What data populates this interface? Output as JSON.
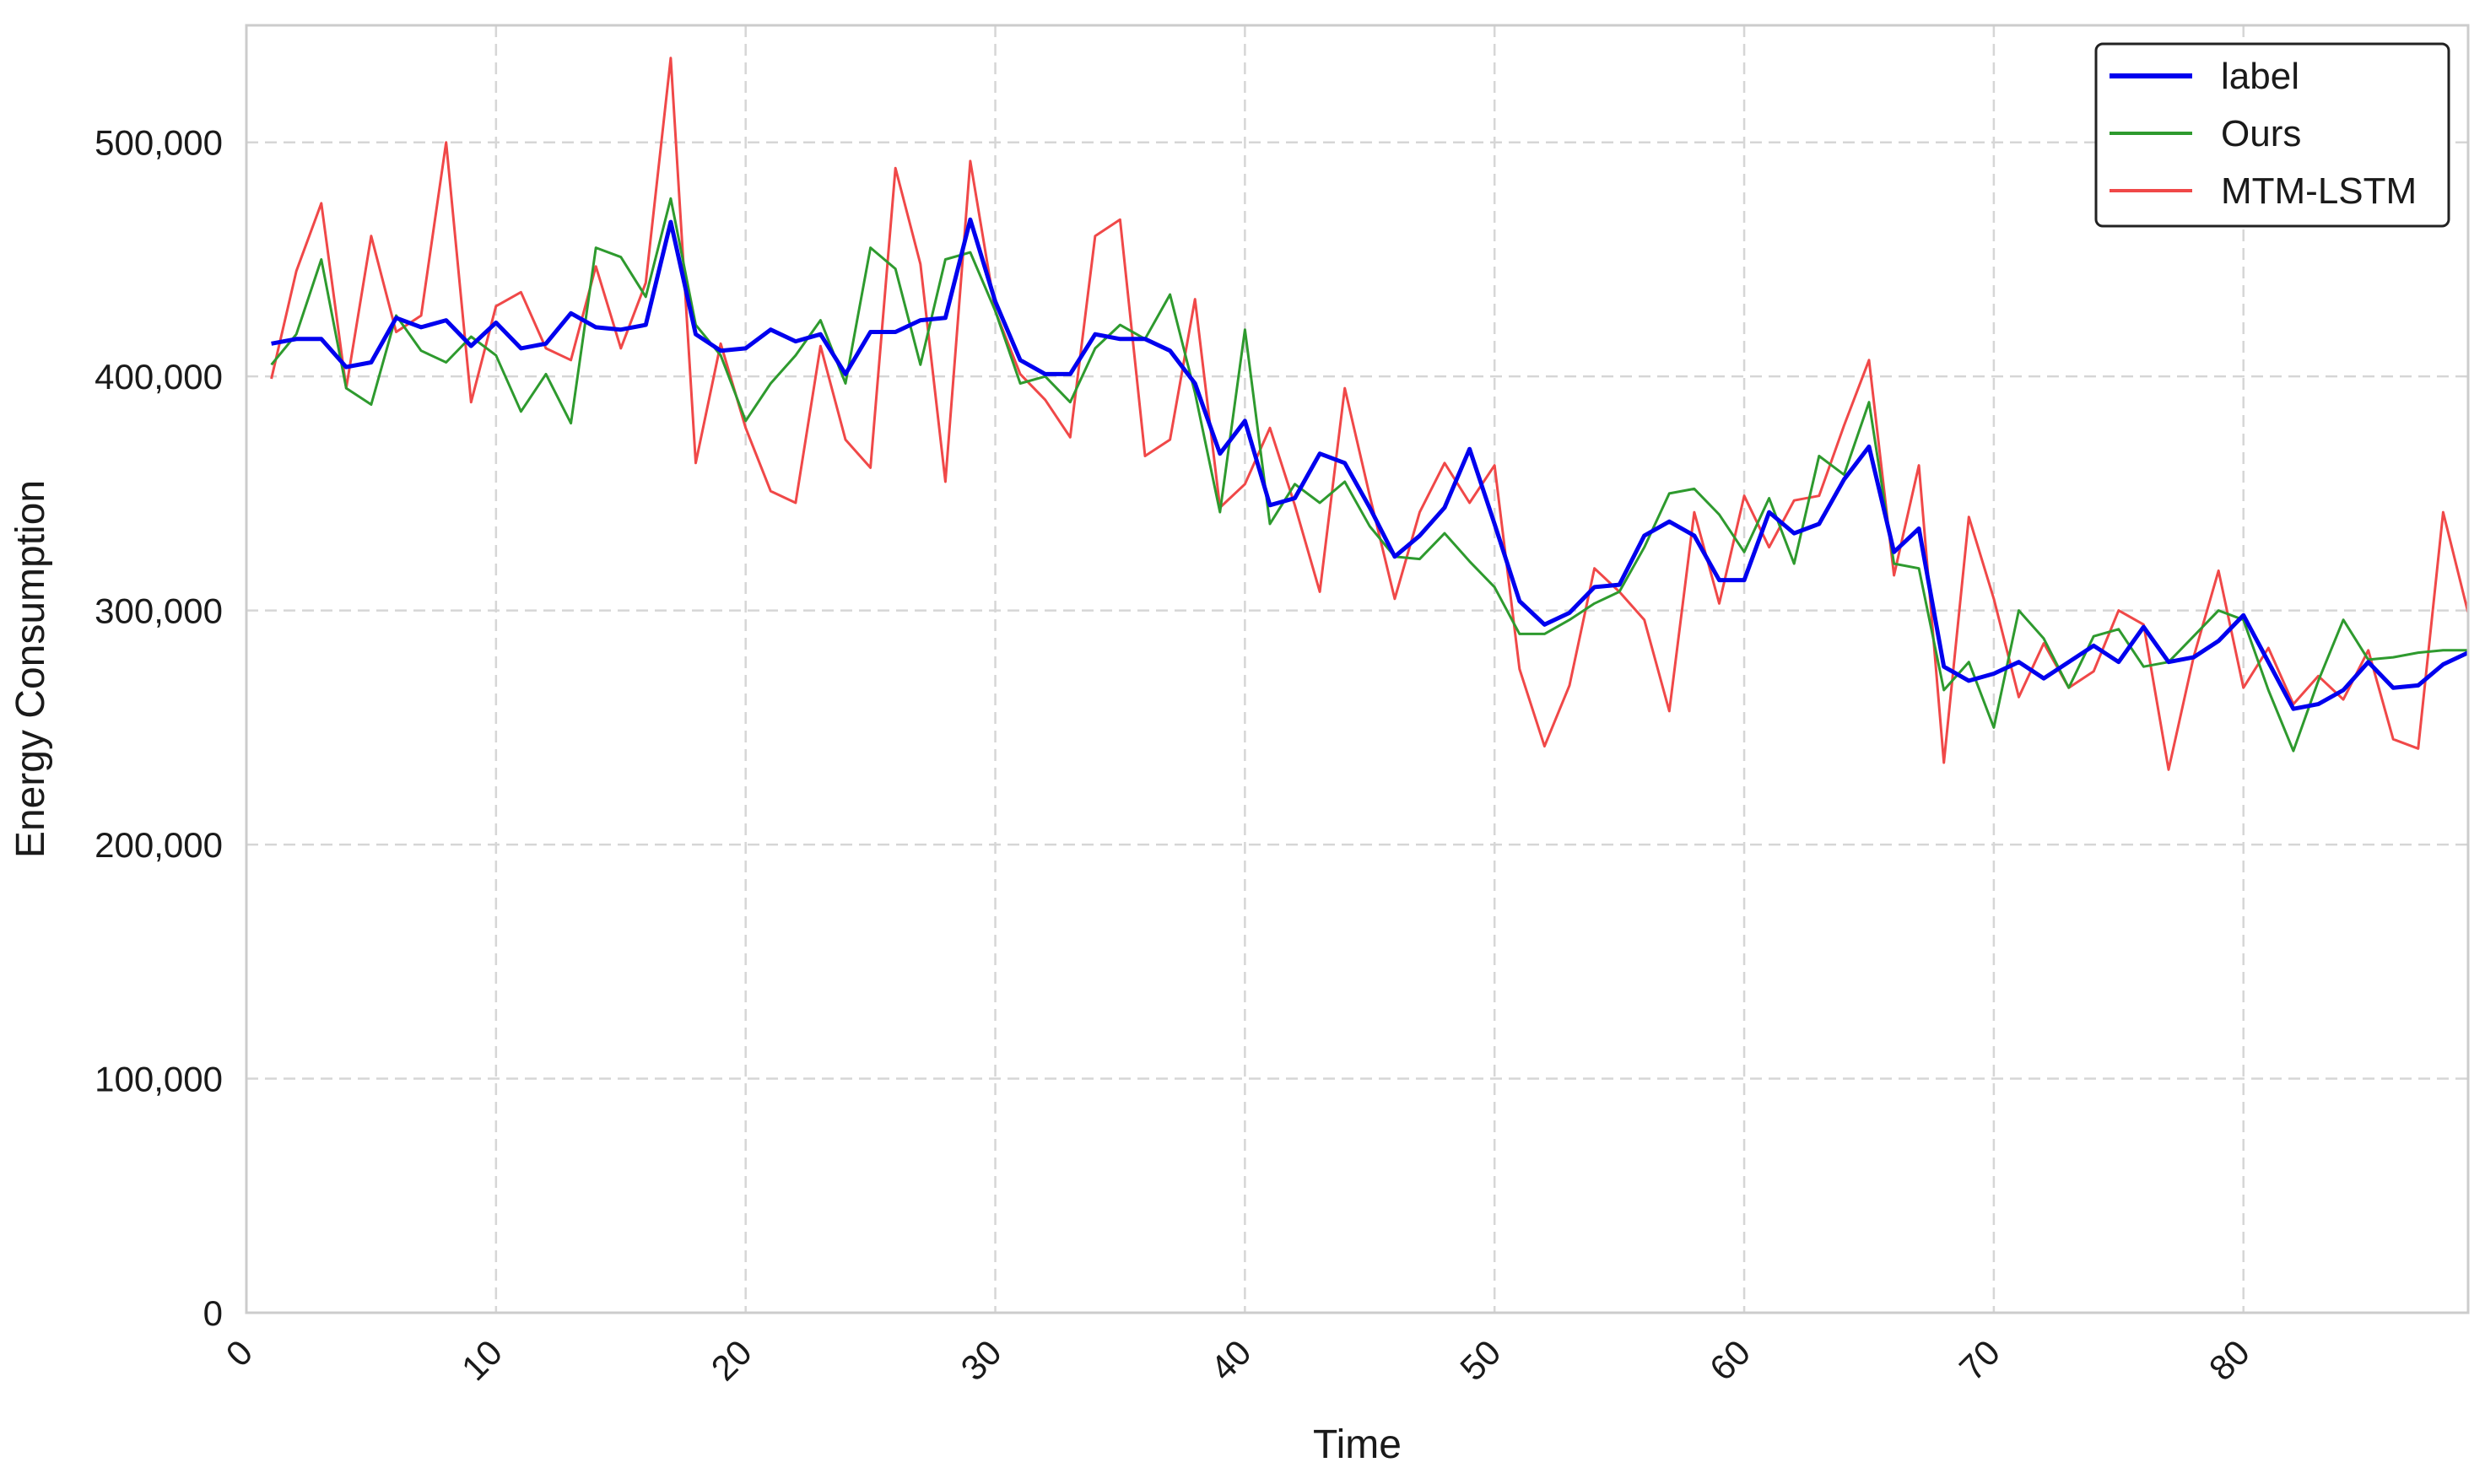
{
  "chart_data": {
    "type": "line",
    "title": "",
    "xlabel": "Time",
    "ylabel": "Energy Consumption",
    "xlim": [
      0,
      89
    ],
    "ylim": [
      0,
      550000
    ],
    "xticks": [
      0,
      10,
      20,
      30,
      40,
      50,
      60,
      70,
      80
    ],
    "xtick_labels": [
      "0",
      "10",
      "20",
      "30",
      "40",
      "50",
      "60",
      "70",
      "80"
    ],
    "yticks": [
      0,
      100000,
      200000,
      300000,
      400000,
      500000
    ],
    "ytick_labels": [
      "0",
      "100,000",
      "200,000",
      "300,000",
      "400,000",
      "500,000"
    ],
    "grid": true,
    "legend_position": "top-right",
    "x": [
      1,
      2,
      3,
      4,
      5,
      6,
      7,
      8,
      9,
      10,
      11,
      12,
      13,
      14,
      15,
      16,
      17,
      18,
      19,
      20,
      21,
      22,
      23,
      24,
      25,
      26,
      27,
      28,
      29,
      30,
      31,
      32,
      33,
      34,
      35,
      36,
      37,
      38,
      39,
      40,
      41,
      42,
      43,
      44,
      45,
      46,
      47,
      48,
      49,
      50,
      51,
      52,
      53,
      54,
      55,
      56,
      57,
      58,
      59,
      60,
      61,
      62,
      63,
      64,
      65,
      66,
      67,
      68,
      69,
      70,
      71,
      72,
      73,
      74,
      75,
      76,
      77,
      78,
      79,
      80,
      81,
      82,
      83,
      84,
      85,
      86,
      87,
      88,
      89
    ],
    "series": [
      {
        "name": "label",
        "color": "#0000ee",
        "width": 5,
        "values": [
          414000,
          416000,
          416000,
          404000,
          406000,
          425000,
          421000,
          424000,
          413000,
          423000,
          412000,
          414000,
          427000,
          421000,
          420000,
          422000,
          466000,
          418000,
          411000,
          412000,
          420000,
          415000,
          418000,
          401000,
          419000,
          419000,
          424000,
          425000,
          467000,
          432000,
          407000,
          401000,
          401000,
          418000,
          416000,
          416000,
          411000,
          397000,
          367000,
          381000,
          345000,
          348000,
          367000,
          363000,
          344000,
          323000,
          332000,
          344000,
          369000,
          337000,
          304000,
          294000,
          299000,
          310000,
          311000,
          332000,
          338000,
          332000,
          313000,
          313000,
          342000,
          333000,
          337000,
          356000,
          370000,
          325000,
          335000,
          276000,
          270000,
          273000,
          278000,
          271000,
          278000,
          285000,
          278000,
          293000,
          278000,
          280000,
          287000,
          298000,
          278000,
          258000,
          260000,
          266000,
          278000,
          267000,
          268000,
          277000,
          282000
        ]
      },
      {
        "name": "Ours",
        "color": "#2e9a2e",
        "width": 3,
        "values": [
          405000,
          418000,
          450000,
          395000,
          388000,
          426000,
          411000,
          406000,
          417000,
          409000,
          385000,
          401000,
          380000,
          455000,
          451000,
          434000,
          476000,
          422000,
          409000,
          381000,
          397000,
          409000,
          424000,
          397000,
          455000,
          446000,
          405000,
          450000,
          453000,
          428000,
          397000,
          400000,
          389000,
          412000,
          422000,
          416000,
          435000,
          393000,
          342000,
          420000,
          337000,
          354000,
          346000,
          355000,
          336000,
          323000,
          322000,
          333000,
          321000,
          310000,
          290000,
          290000,
          296000,
          303000,
          308000,
          327000,
          350000,
          352000,
          341000,
          325000,
          348000,
          320000,
          366000,
          358000,
          389000,
          320000,
          318000,
          266000,
          278000,
          250000,
          300000,
          288000,
          267000,
          289000,
          292000,
          276000,
          278000,
          289000,
          300000,
          296000,
          266000,
          240000,
          270000,
          296000,
          279000,
          280000,
          282000,
          283000,
          283000
        ]
      },
      {
        "name": "MTM-LSTM",
        "color": "#f04848",
        "width": 3,
        "values": [
          399000,
          445000,
          474000,
          395000,
          460000,
          419000,
          426000,
          500000,
          389000,
          430000,
          436000,
          412000,
          407000,
          447000,
          412000,
          440000,
          536000,
          363000,
          414000,
          378000,
          351000,
          346000,
          413000,
          373000,
          361000,
          489000,
          448000,
          355000,
          492000,
          428000,
          401000,
          390000,
          374000,
          460000,
          467000,
          366000,
          373000,
          433000,
          344000,
          354000,
          378000,
          345000,
          308000,
          395000,
          349000,
          305000,
          342000,
          363000,
          346000,
          362000,
          275000,
          242000,
          268000,
          318000,
          308000,
          296000,
          257000,
          342000,
          303000,
          349000,
          327000,
          347000,
          349000,
          379000,
          407000,
          315000,
          362000,
          235000,
          340000,
          305000,
          263000,
          286000,
          267000,
          274000,
          300000,
          294000,
          232000,
          280000,
          317000,
          267000,
          284000,
          260000,
          272000,
          262000,
          283000,
          245000,
          241000,
          342000,
          299000
        ]
      }
    ]
  }
}
